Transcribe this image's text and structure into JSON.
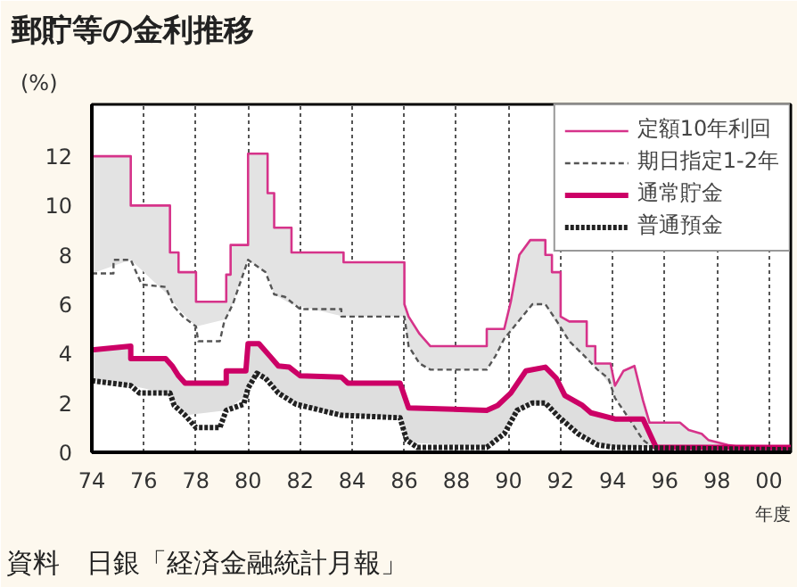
{
  "chart_data": {
    "type": "line",
    "title": "郵貯等の金利推移",
    "ylabel": "(%)",
    "xlabel": "年度",
    "annotations": [
      "資料　日銀「経済金融統計月報」"
    ],
    "xlim": [
      "1974-01",
      "2000-11"
    ],
    "ylim": [
      0,
      14.1
    ],
    "xticks": [
      {
        "value": "1974",
        "label": "74"
      },
      {
        "value": "1976",
        "label": "76"
      },
      {
        "value": "1978",
        "label": "78"
      },
      {
        "value": "1980",
        "label": "80"
      },
      {
        "value": "1982",
        "label": "82"
      },
      {
        "value": "1984",
        "label": "84"
      },
      {
        "value": "1986",
        "label": "86"
      },
      {
        "value": "1988",
        "label": "88"
      },
      {
        "value": "1990",
        "label": "90"
      },
      {
        "value": "1992",
        "label": "92"
      },
      {
        "value": "1994",
        "label": "94"
      },
      {
        "value": "1996",
        "label": "96"
      },
      {
        "value": "1998",
        "label": "98"
      },
      {
        "value": "2000",
        "label": "00"
      }
    ],
    "yticks": [
      0,
      2,
      4,
      6,
      8,
      10,
      12
    ],
    "grid": "x",
    "legend": "top right",
    "series": [
      {
        "name": "定額10年利回",
        "color": "#d6338a",
        "line_style": "solid",
        "x": [
          "1974-01",
          "1975-07",
          "1975-07",
          "1977-01",
          "1977-01",
          "1977-05",
          "1977-05",
          "1978-01",
          "1978-01",
          "1979-03",
          "1979-03",
          "1979-05",
          "1979-05",
          "1980-01",
          "1980-01",
          "1980-10",
          "1980-10",
          "1981-01",
          "1981-01",
          "1981-09",
          "1981-09",
          "1983-09",
          "1983-09",
          "1986-01",
          "1986-01",
          "1986-03",
          "1986-08",
          "1987-01",
          "1989-03",
          "1989-03",
          "1989-11",
          "1990-02",
          "1990-06",
          "1990-11",
          "1991-06",
          "1991-06",
          "1991-09",
          "1991-09",
          "1992-01",
          "1992-01",
          "1992-05",
          "1993-01",
          "1993-01",
          "1993-05",
          "1993-05",
          "1993-12",
          "1994-02",
          "1994-06",
          "1994-11",
          "1995-03",
          "1995-06",
          "1996-08",
          "1996-12",
          "1997-06",
          "1997-09",
          "1998-06",
          "1999-01",
          "2000-01",
          "2000-11"
        ],
        "values": [
          12,
          12,
          10,
          10,
          8.1,
          8.1,
          7.3,
          7.3,
          6.1,
          6.1,
          7.2,
          7.2,
          8.4,
          8.4,
          12.1,
          12.1,
          10.5,
          10.5,
          9.1,
          9.1,
          8.1,
          8.1,
          7.7,
          7.7,
          6.0,
          5.5,
          4.8,
          4.3,
          4.3,
          5.0,
          5.0,
          6.1,
          8.0,
          8.6,
          8.6,
          8.0,
          8.0,
          7.3,
          7.3,
          5.5,
          5.3,
          5.3,
          4.3,
          4.3,
          3.6,
          3.6,
          2.7,
          3.3,
          3.5,
          2.1,
          1.2,
          1.2,
          0.9,
          0.75,
          0.5,
          0.3,
          0.2,
          0.1,
          0.1
        ],
        "upper": [
          12,
          12,
          10,
          10,
          8.1,
          8.1,
          7.3,
          7.3,
          6.1,
          6.1,
          7.2,
          7.2,
          8.4,
          8.4,
          12.1,
          12.1,
          10.5,
          10.5,
          9.1,
          9.1,
          8.1,
          8.1,
          7.7,
          7.7,
          6.0,
          5.5,
          4.8,
          4.3,
          4.3,
          5.0,
          5.0,
          6.1,
          8.0,
          8.6,
          8.6,
          8.0,
          8.0,
          7.3,
          7.3,
          5.5,
          5.3,
          5.3,
          4.3,
          4.3,
          3.6,
          3.6,
          2.7,
          3.3,
          3.5,
          2.1,
          1.2,
          1.2,
          0.9,
          0.75,
          0.5,
          0.3,
          0.2,
          0.1,
          0.1
        ],
        "lower": [
          7.25,
          7.8,
          7.8,
          6.3,
          6.3,
          5.8,
          5.8,
          5.1,
          5.1,
          5.4,
          5.4,
          5.8,
          5.8,
          7.8,
          7.8,
          7.2,
          7.2,
          6.4,
          6.4,
          6.0,
          6.0,
          5.5,
          5.5,
          5.5,
          5.5,
          4.3,
          3.6,
          3.35,
          3.35,
          3.35,
          4.6,
          4.9,
          5.35,
          5.9,
          6.0,
          6.0,
          5.5,
          5.5,
          5.0,
          5.0,
          4.45,
          3.8,
          3.8,
          3.45,
          3.45,
          2.7,
          2.2,
          1.7,
          1.1,
          0.5,
          0.3,
          0.1,
          0.1,
          0.1,
          0.1,
          0.1,
          0.1,
          0.1,
          0.1
        ]
      },
      {
        "name": "期日指定1-2年",
        "color": "#555555",
        "line_style": "dashed",
        "x": [
          "1974-01",
          "1974-11",
          "1974-11",
          "1975-07",
          "1975-12",
          "1976-11",
          "1977-03",
          "1977-07",
          "1978-01",
          "1978-02",
          "1978-12",
          "1979-02",
          "1979-06",
          "1980-01",
          "1980-09",
          "1981-01",
          "1981-06",
          "1982-01",
          "1983-08",
          "1983-08",
          "1986-01",
          "1986-03",
          "1986-08",
          "1987-01",
          "1989-03",
          "1989-07",
          "1989-11",
          "1990-06",
          "1990-12",
          "1991-06",
          "1991-11",
          "1992-05",
          "1992-12",
          "1993-06",
          "1993-11",
          "1994-02",
          "1994-09",
          "1995-03",
          "1995-09",
          "2000-11"
        ],
        "values": [
          7.25,
          7.25,
          7.8,
          7.8,
          6.8,
          6.7,
          5.9,
          5.5,
          5.1,
          4.5,
          4.5,
          5.3,
          6.0,
          7.8,
          7.3,
          6.4,
          6.3,
          5.8,
          5.8,
          5.5,
          5.5,
          4.3,
          3.6,
          3.35,
          3.35,
          3.9,
          4.6,
          5.35,
          6.0,
          6.0,
          5.35,
          4.5,
          3.9,
          3.35,
          3.0,
          2.2,
          1.3,
          0.5,
          0.1,
          0.1
        ]
      },
      {
        "name": "通常貯金",
        "color": "#cc0066",
        "line_style": "solid",
        "x": [
          "1974-01",
          "1975-07",
          "1975-07",
          "1976-11",
          "1977-02",
          "1977-05",
          "1977-08",
          "1979-03",
          "1979-03",
          "1979-12",
          "1980-01",
          "1980-06",
          "1980-11",
          "1981-03",
          "1981-08",
          "1982-01",
          "1983-08",
          "1983-11",
          "1985-11",
          "1986-03",
          "1989-03",
          "1989-08",
          "1990-02",
          "1990-09",
          "1991-06",
          "1991-11",
          "1992-03",
          "1992-11",
          "1993-03",
          "1994-02",
          "1995-03",
          "1995-09",
          "2000-11"
        ],
        "values": [
          4.15,
          4.3,
          3.8,
          3.8,
          3.5,
          3.1,
          2.8,
          2.8,
          3.3,
          3.3,
          4.4,
          4.4,
          3.9,
          3.5,
          3.45,
          3.1,
          3.05,
          2.8,
          2.8,
          1.8,
          1.7,
          1.9,
          2.4,
          3.3,
          3.45,
          3.0,
          2.3,
          1.9,
          1.6,
          1.35,
          1.35,
          0.2,
          0.2
        ],
        "upper": [
          4.15,
          4.3,
          3.8,
          3.8,
          3.5,
          3.1,
          2.8,
          2.8,
          3.3,
          3.3,
          4.4,
          4.4,
          3.9,
          3.5,
          3.45,
          3.1,
          3.05,
          2.8,
          2.8,
          1.8,
          1.7,
          1.9,
          2.4,
          3.3,
          3.45,
          3.0,
          2.3,
          1.9,
          1.6,
          1.35,
          1.35,
          0.2,
          0.2
        ],
        "lower": [
          2.9,
          2.7,
          2.7,
          2.4,
          2.15,
          1.8,
          1.5,
          1.7,
          1.7,
          2.3,
          2.6,
          3.15,
          2.9,
          2.4,
          2.1,
          1.9,
          1.5,
          1.5,
          1.4,
          0.4,
          0.2,
          0.55,
          1.3,
          1.9,
          2.0,
          1.55,
          1.2,
          0.7,
          0.45,
          0.2,
          0.2,
          0.2,
          0.1
        ]
      },
      {
        "name": "普通預金",
        "color": "#222222",
        "line_style": "dotted",
        "x": [
          "1974-01",
          "1975-07",
          "1975-11",
          "1977-01",
          "1977-03",
          "1977-08",
          "1978-01",
          "1978-12",
          "1979-03",
          "1979-11",
          "1980-01",
          "1980-05",
          "1980-09",
          "1981-03",
          "1981-11",
          "1983-08",
          "1985-11",
          "1986-02",
          "1986-07",
          "1989-03",
          "1989-11",
          "1990-05",
          "1990-12",
          "1991-06",
          "1991-12",
          "1992-09",
          "1993-06",
          "1994-02",
          "2000-11"
        ],
        "values": [
          2.9,
          2.7,
          2.4,
          2.4,
          1.9,
          1.5,
          1.0,
          1.0,
          1.7,
          1.95,
          2.6,
          3.2,
          3.0,
          2.4,
          1.95,
          1.5,
          1.4,
          0.5,
          0.2,
          0.2,
          0.75,
          1.7,
          2.0,
          2.0,
          1.45,
          0.75,
          0.3,
          0.2,
          0.1
        ]
      }
    ]
  }
}
